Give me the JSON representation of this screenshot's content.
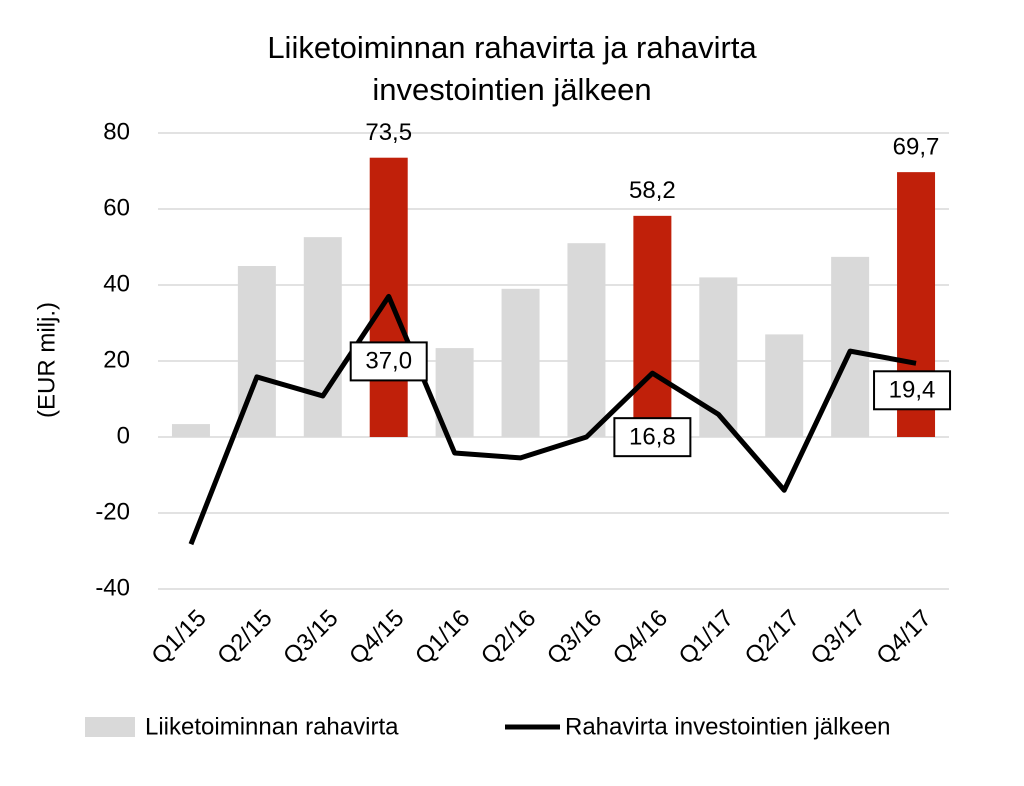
{
  "chart_data": {
    "type": "bar",
    "title": [
      "Liiketoiminnan rahavirta ja rahavirta",
      "investointien jälkeen"
    ],
    "y_label": "(EUR milj.)",
    "categories": [
      "Q1/15",
      "Q2/15",
      "Q3/15",
      "Q4/15",
      "Q1/16",
      "Q2/16",
      "Q3/16",
      "Q4/16",
      "Q1/17",
      "Q2/17",
      "Q3/17",
      "Q4/17"
    ],
    "series": [
      {
        "name": "Liiketoiminnan rahavirta",
        "type": "bar",
        "color": "#d9d9d9",
        "colors": [
          "#d9d9d9",
          "#d9d9d9",
          "#d9d9d9",
          "#c0200a",
          "#d9d9d9",
          "#d9d9d9",
          "#d9d9d9",
          "#c0200a",
          "#d9d9d9",
          "#d9d9d9",
          "#d9d9d9",
          "#c0200a"
        ],
        "values": [
          3.4,
          45,
          52.6,
          73.5,
          23.4,
          39,
          51,
          58.2,
          42,
          27,
          47.4,
          69.7
        ],
        "value_labels": [
          null,
          null,
          null,
          "73,5",
          null,
          null,
          null,
          "58,2",
          null,
          null,
          null,
          "69,7"
        ]
      },
      {
        "name": "Rahavirta investointien jälkeen",
        "type": "line",
        "color": "#000000",
        "values": [
          -28.2,
          15.8,
          10.8,
          37.0,
          -4.2,
          -5.5,
          0,
          16.8,
          6,
          -14,
          22.6,
          19.4
        ],
        "value_labels": [
          null,
          null,
          null,
          "37,0",
          null,
          null,
          null,
          "16,8",
          null,
          null,
          null,
          "19,4"
        ]
      }
    ],
    "ylim": [
      -40,
      80
    ],
    "yticks": [
      -40,
      -20,
      0,
      20,
      40,
      60,
      80
    ],
    "grid": true,
    "legend": "bottom"
  }
}
